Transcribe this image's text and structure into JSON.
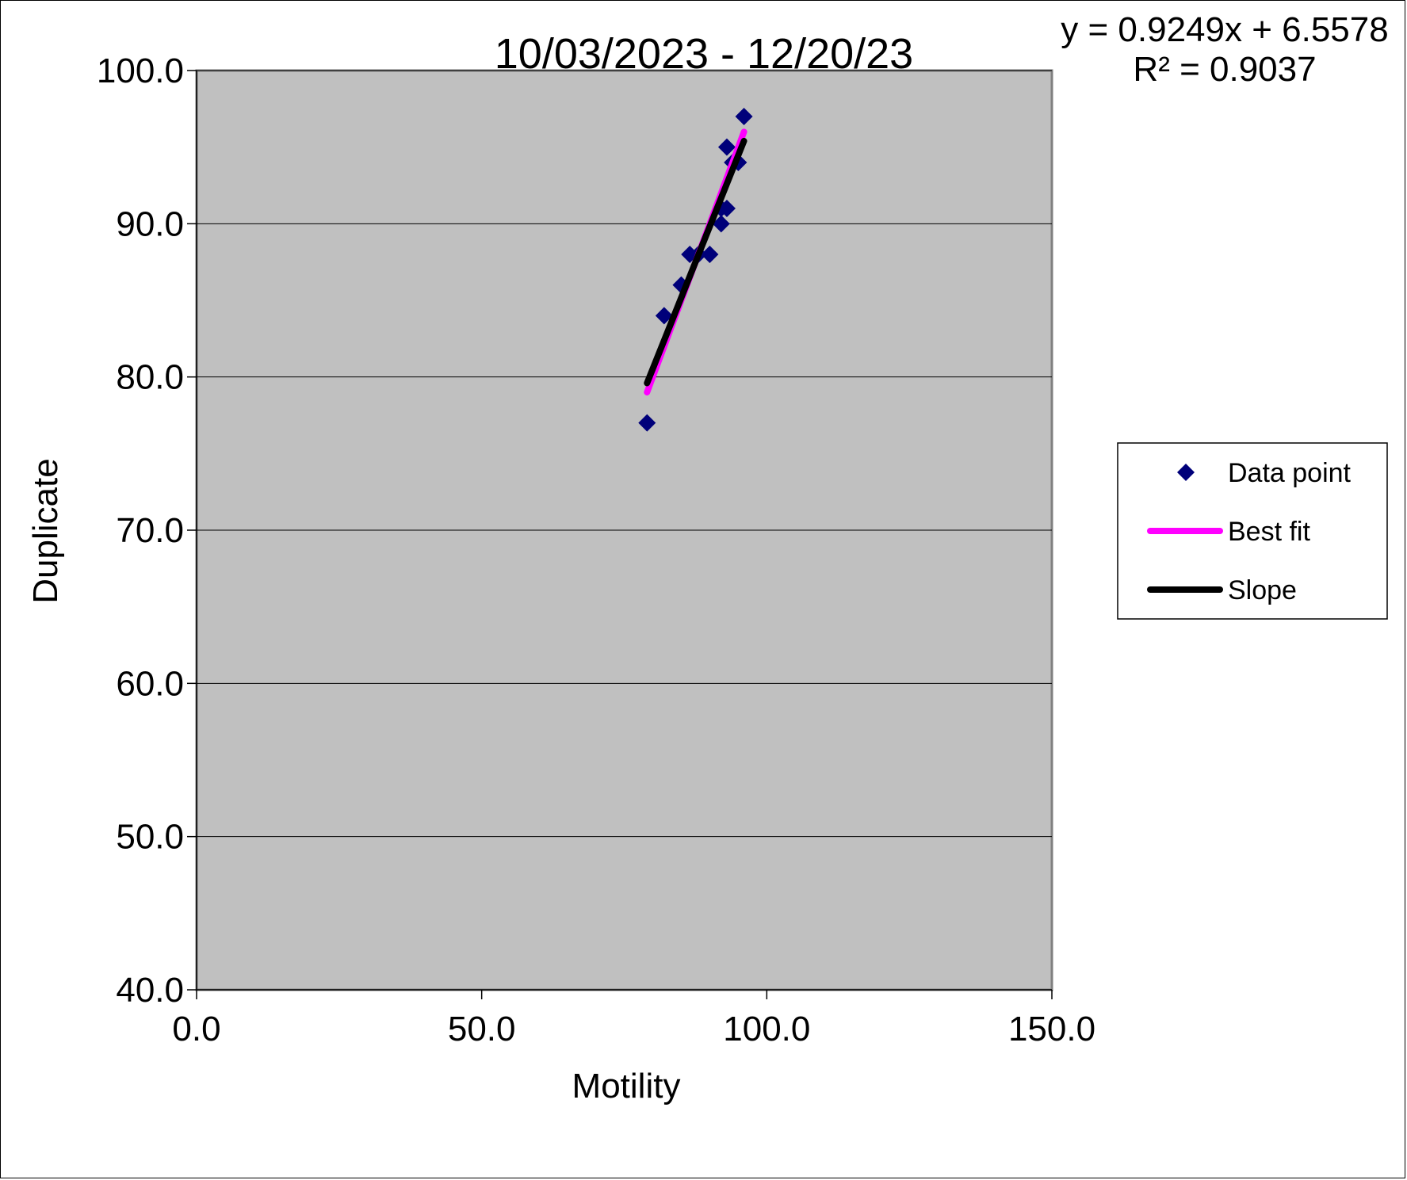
{
  "chart_data": {
    "type": "scatter",
    "title": "10/03/2023 - 12/20/23",
    "xlabel": "Motility",
    "ylabel": "Duplicate",
    "xlim": [
      0,
      150
    ],
    "ylim": [
      40,
      100
    ],
    "x_ticks": [
      "0.0",
      "50.0",
      "100.0",
      "150.0"
    ],
    "y_ticks": [
      "40.0",
      "50.0",
      "60.0",
      "70.0",
      "80.0",
      "90.0",
      "100.0"
    ],
    "x_tick_values": [
      0,
      50,
      100,
      150
    ],
    "y_tick_values": [
      40,
      50,
      60,
      70,
      80,
      90,
      100
    ],
    "plot_background": "#c0c0c0",
    "grid": "horizontal",
    "legend_position": "right",
    "trendline_equation": "y = 0.9249x + 6.5578",
    "trendline_r2": "R² = 0.9037",
    "series": [
      {
        "name": "Data point",
        "kind": "marker",
        "color": "#00007a",
        "points": [
          [
            79,
            77
          ],
          [
            82,
            84
          ],
          [
            85,
            86
          ],
          [
            86.5,
            88
          ],
          [
            88,
            88
          ],
          [
            90,
            88
          ],
          [
            92,
            90
          ],
          [
            92,
            91
          ],
          [
            93,
            91
          ],
          [
            93,
            95
          ],
          [
            94,
            94
          ],
          [
            95,
            94
          ],
          [
            96,
            97
          ]
        ]
      },
      {
        "name": "Best fit",
        "kind": "line",
        "color": "#ff00ff",
        "points": [
          [
            79,
            79
          ],
          [
            96,
            96
          ]
        ]
      },
      {
        "name": "Slope",
        "kind": "line",
        "color": "#000000",
        "points": [
          [
            79,
            79.6
          ],
          [
            96,
            95.4
          ]
        ]
      }
    ]
  }
}
